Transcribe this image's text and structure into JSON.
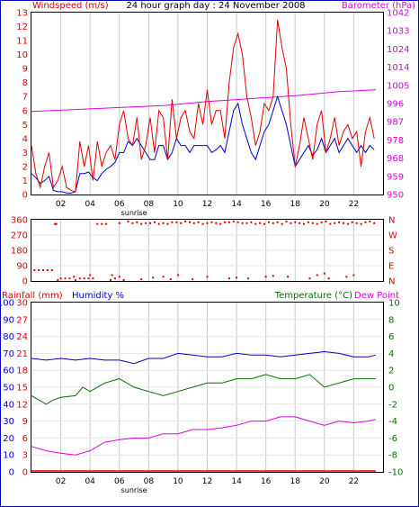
{
  "window": {
    "size": "466x563"
  },
  "chart_data": [
    {
      "type": "line",
      "title": "24 hour graph day : 24 November 2008",
      "left_axis_label": "Windspeed (m/s)",
      "right_axis_label": "Barometer (hPa)",
      "left_ylim": [
        0,
        13
      ],
      "left_ticks": [
        "0",
        "1",
        "2",
        "3",
        "4",
        "5",
        "6",
        "7",
        "8",
        "9",
        "10",
        "11",
        "12",
        "13"
      ],
      "right_ylim": [
        950,
        1042
      ],
      "right_ticks": [
        "950",
        "959",
        "968",
        "978",
        "987",
        "996",
        "1005",
        "1014",
        "1024",
        "1033",
        "1042"
      ],
      "x_ticks": [
        "02",
        "04",
        "06",
        "08",
        "10",
        "12",
        "14",
        "16",
        "18",
        "20",
        "22"
      ],
      "x_tick_hours": [
        2,
        4,
        6,
        8,
        10,
        12,
        14,
        16,
        18,
        20,
        22
      ],
      "xlim": [
        0,
        24
      ],
      "x_annotation": "sunrise",
      "x_annotation_hour": 7,
      "series": [
        {
          "role": "gust",
          "color": "#e00000",
          "x": [
            0.0,
            0.3,
            0.6,
            0.9,
            1.2,
            1.5,
            1.8,
            2.1,
            2.4,
            2.7,
            3.0,
            3.3,
            3.6,
            3.9,
            4.2,
            4.5,
            4.8,
            5.1,
            5.4,
            5.7,
            6.0,
            6.3,
            6.6,
            6.9,
            7.2,
            7.5,
            7.8,
            8.1,
            8.4,
            8.7,
            9.0,
            9.3,
            9.6,
            9.9,
            10.2,
            10.5,
            10.8,
            11.1,
            11.4,
            11.7,
            12.0,
            12.3,
            12.6,
            12.9,
            13.2,
            13.5,
            13.8,
            14.1,
            14.4,
            14.7,
            15.0,
            15.3,
            15.6,
            15.9,
            16.2,
            16.5,
            16.8,
            17.1,
            17.4,
            17.7,
            18.0,
            18.3,
            18.6,
            18.9,
            19.2,
            19.5,
            19.8,
            20.1,
            20.4,
            20.7,
            21.0,
            21.3,
            21.6,
            21.9,
            22.2,
            22.5,
            22.8,
            23.1,
            23.4
          ],
          "values": [
            3.5,
            1.5,
            0.5,
            2.0,
            3.0,
            0.5,
            1.0,
            2.0,
            0.5,
            0.3,
            0.2,
            3.8,
            2.0,
            3.5,
            1.0,
            3.8,
            2.0,
            3.0,
            3.5,
            2.5,
            5.0,
            6.0,
            4.0,
            3.5,
            5.5,
            2.5,
            3.5,
            5.5,
            3.0,
            6.0,
            5.5,
            2.5,
            6.8,
            4.0,
            5.5,
            6.0,
            4.5,
            4.0,
            6.5,
            5.0,
            7.5,
            5.0,
            6.0,
            6.0,
            4.0,
            8.0,
            10.5,
            11.5,
            10.0,
            7.0,
            5.5,
            3.5,
            4.5,
            6.5,
            6.0,
            7.0,
            12.5,
            10.5,
            9.0,
            5.0,
            2.0,
            3.5,
            5.5,
            4.0,
            2.5,
            5.0,
            6.0,
            3.0,
            4.0,
            5.5,
            3.5,
            4.5,
            5.0,
            4.0,
            4.5,
            2.0,
            4.5,
            5.5,
            4.0
          ]
        },
        {
          "role": "average",
          "color": "#0000c8",
          "x": [
            0.0,
            0.3,
            0.6,
            0.9,
            1.2,
            1.5,
            1.8,
            2.1,
            2.4,
            2.7,
            3.0,
            3.3,
            3.6,
            3.9,
            4.2,
            4.5,
            4.8,
            5.1,
            5.4,
            5.7,
            6.0,
            6.3,
            6.6,
            6.9,
            7.2,
            7.5,
            7.8,
            8.1,
            8.4,
            8.7,
            9.0,
            9.3,
            9.6,
            9.9,
            10.2,
            10.5,
            10.8,
            11.1,
            11.4,
            11.7,
            12.0,
            12.3,
            12.6,
            12.9,
            13.2,
            13.5,
            13.8,
            14.1,
            14.4,
            14.7,
            15.0,
            15.3,
            15.6,
            15.9,
            16.2,
            16.5,
            16.8,
            17.1,
            17.4,
            17.7,
            18.0,
            18.3,
            18.6,
            18.9,
            19.2,
            19.5,
            19.8,
            20.1,
            20.4,
            20.7,
            21.0,
            21.3,
            21.6,
            21.9,
            22.2,
            22.5,
            22.8,
            23.1,
            23.4
          ],
          "values": [
            1.5,
            1.2,
            0.8,
            1.0,
            1.3,
            0.3,
            0.2,
            0.2,
            0.1,
            0.1,
            0.2,
            1.5,
            1.5,
            1.6,
            1.2,
            1.0,
            1.5,
            1.8,
            2.0,
            2.3,
            3.0,
            3.0,
            3.8,
            3.5,
            4.0,
            3.5,
            3.0,
            2.5,
            2.5,
            3.5,
            3.5,
            2.5,
            3.0,
            4.0,
            3.5,
            3.5,
            3.0,
            3.5,
            3.5,
            3.5,
            3.5,
            3.0,
            3.2,
            3.5,
            3.0,
            4.5,
            6.0,
            6.5,
            5.0,
            4.0,
            3.0,
            2.5,
            3.5,
            4.5,
            5.0,
            6.0,
            7.0,
            6.0,
            5.0,
            3.5,
            2.0,
            2.5,
            3.0,
            3.5,
            2.8,
            3.2,
            4.0,
            3.0,
            3.5,
            4.0,
            3.0,
            3.5,
            4.0,
            3.5,
            3.0,
            3.5,
            3.0,
            3.5,
            3.2
          ]
        },
        {
          "role": "barometer",
          "axis": "right",
          "color": "#e000e0",
          "x": [
            0,
            3,
            6,
            9,
            12,
            15,
            18,
            21,
            23.5
          ],
          "values": [
            992.0,
            993.0,
            994.0,
            995.0,
            997.0,
            998.5,
            1000.0,
            1002.0,
            1003.0
          ]
        }
      ]
    },
    {
      "type": "scatter",
      "ylim": [
        0,
        360
      ],
      "left_ticks": [
        "0",
        "90",
        "180",
        "270",
        "360"
      ],
      "right_ticks": [
        "N",
        "E",
        "S",
        "W",
        "N"
      ],
      "xlim": [
        0,
        24
      ],
      "x_tick_hours": [
        2,
        4,
        6,
        8,
        10,
        12,
        14,
        16,
        18,
        20,
        22
      ],
      "point_color": "#e00000",
      "x": [
        0.2,
        0.5,
        0.8,
        1.1,
        1.4,
        1.6,
        1.7,
        2.0,
        2.3,
        2.6,
        2.9,
        3.3,
        3.6,
        3.9,
        4.2,
        4.5,
        4.8,
        5.1,
        5.4,
        5.7,
        6.0,
        6.3,
        6.6,
        6.9,
        7.2,
        7.5,
        7.8,
        8.1,
        8.4,
        8.7,
        9.0,
        9.3,
        9.6,
        9.9,
        10.2,
        10.5,
        10.8,
        11.1,
        11.4,
        11.7,
        12.0,
        12.3,
        12.6,
        12.9,
        13.2,
        13.5,
        13.8,
        14.1,
        14.4,
        14.7,
        15.0,
        15.3,
        15.6,
        15.9,
        16.2,
        16.5,
        16.8,
        17.1,
        17.4,
        17.7,
        18.0,
        18.3,
        18.6,
        18.9,
        19.2,
        19.5,
        19.8,
        20.1,
        20.4,
        20.7,
        21.0,
        21.3,
        21.6,
        21.9,
        22.2,
        22.5,
        22.8,
        23.1,
        23.4,
        4.0,
        5.5,
        6.0,
        9.0,
        9.5,
        10.0,
        12.0,
        13.5,
        14.0,
        16.0,
        16.5,
        19.0,
        19.5,
        20.0,
        21.5,
        7.5,
        8.3,
        11.0,
        14.8,
        17.5,
        20.3,
        22.0,
        1.8,
        3.0
      ],
      "values": [
        60,
        60,
        60,
        60,
        60,
        340,
        340,
        10,
        10,
        10,
        20,
        10,
        10,
        10,
        10,
        340,
        340,
        340,
        0,
        10,
        345,
        0,
        355,
        345,
        350,
        340,
        345,
        345,
        350,
        340,
        345,
        340,
        350,
        350,
        345,
        355,
        350,
        345,
        350,
        340,
        345,
        350,
        345,
        340,
        350,
        350,
        355,
        350,
        345,
        345,
        350,
        340,
        345,
        340,
        350,
        345,
        350,
        340,
        355,
        345,
        350,
        345,
        340,
        350,
        345,
        340,
        350,
        355,
        340,
        345,
        350,
        345,
        340,
        350,
        345,
        340,
        350,
        355,
        345,
        30,
        30,
        20,
        20,
        5,
        30,
        20,
        10,
        15,
        20,
        25,
        10,
        30,
        40,
        20,
        5,
        15,
        5,
        10,
        20,
        10,
        30,
        0,
        0
      ]
    },
    {
      "type": "line",
      "left_axis_label": "Rainfall (mm)",
      "left_axis_label_2": "Humidity %",
      "right_axis_label": "Temperature (°C)",
      "right_axis_label_2": "Dew Point",
      "rain_ticks": [
        "0",
        "3",
        "6",
        "9",
        "12",
        "15",
        "18",
        "21",
        "24",
        "27",
        "30"
      ],
      "humidity_ticks": [
        "0",
        "10",
        "20",
        "30",
        "40",
        "50",
        "60",
        "70",
        "80",
        "90",
        "100"
      ],
      "humidity_ylim": [
        0,
        100
      ],
      "right_ticks": [
        "-10",
        "-8",
        "-6",
        "-4",
        "-2",
        "0",
        "2",
        "4",
        "6",
        "8",
        "10"
      ],
      "right_ylim": [
        -10,
        10
      ],
      "x_ticks": [
        "02",
        "04",
        "06",
        "08",
        "10",
        "12",
        "14",
        "16",
        "18",
        "20",
        "22"
      ],
      "x_tick_hours": [
        2,
        4,
        6,
        8,
        10,
        12,
        14,
        16,
        18,
        20,
        22
      ],
      "xlim": [
        0,
        24
      ],
      "x_annotation": "sunrise",
      "x_annotation_hour": 7,
      "series": [
        {
          "role": "humidity",
          "axis": "left",
          "color": "#0000c8",
          "x": [
            0,
            1,
            2,
            3,
            4,
            5,
            6,
            7,
            8,
            9,
            10,
            11,
            12,
            13,
            14,
            15,
            16,
            17,
            18,
            19,
            20,
            21,
            22,
            23,
            23.5
          ],
          "values": [
            67,
            66,
            67,
            66,
            67,
            66,
            66,
            64,
            67,
            67,
            70,
            69,
            68,
            68,
            70,
            69,
            69,
            68,
            69,
            70,
            71,
            70,
            68,
            68,
            69
          ]
        },
        {
          "role": "temperature",
          "axis": "right",
          "color": "#007000",
          "x": [
            0,
            0.5,
            1,
            1.5,
            2,
            3,
            3.5,
            4,
            5,
            6,
            7,
            8,
            9,
            10,
            11,
            12,
            13,
            14,
            15,
            16,
            17,
            18,
            19,
            20,
            21,
            22,
            23,
            23.5
          ],
          "values": [
            -1.0,
            -1.5,
            -2.0,
            -1.5,
            -1.2,
            -1.0,
            0.0,
            -0.5,
            0.5,
            1.0,
            0.0,
            -0.5,
            -1.0,
            -0.5,
            0.0,
            0.5,
            0.5,
            1.0,
            1.0,
            1.5,
            1.0,
            1.0,
            1.5,
            0.0,
            0.5,
            1.0,
            1.0,
            1.0
          ]
        },
        {
          "role": "dew_point",
          "axis": "right",
          "color": "#e000e0",
          "x": [
            0,
            1,
            2,
            3,
            4,
            5,
            6,
            7,
            8,
            9,
            10,
            11,
            12,
            13,
            14,
            15,
            16,
            17,
            18,
            19,
            20,
            21,
            22,
            23,
            23.5
          ],
          "values": [
            -7.0,
            -7.5,
            -7.8,
            -8.0,
            -7.5,
            -6.5,
            -6.2,
            -6.0,
            -6.0,
            -5.5,
            -5.5,
            -5.0,
            -5.0,
            -4.8,
            -4.5,
            -4.0,
            -4.0,
            -3.5,
            -3.5,
            -4.0,
            -4.5,
            -4.0,
            -4.2,
            -4.0,
            -3.8
          ]
        },
        {
          "role": "rainfall",
          "axis": "left",
          "color": "#e00000",
          "x": [
            0,
            23.5
          ],
          "values": [
            0,
            0
          ]
        }
      ]
    }
  ]
}
